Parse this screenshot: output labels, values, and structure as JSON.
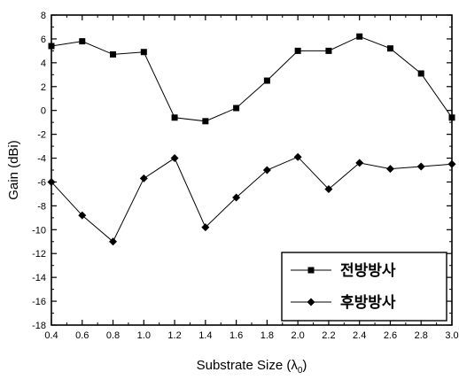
{
  "chart_data": {
    "type": "line",
    "xlabel": "Substrate Size (λ",
    "xlabel_sub": "0",
    "xlabel_close": ")",
    "ylabel": "Gain (dBi)",
    "xlim": [
      0.4,
      3.0
    ],
    "ylim": [
      -18,
      8
    ],
    "x_ticks": [
      0.4,
      0.6,
      0.8,
      1.0,
      1.2,
      1.4,
      1.6,
      1.8,
      2.0,
      2.2,
      2.4,
      2.6,
      2.8,
      3.0
    ],
    "x_tick_labels": [
      "0.4",
      "0.6",
      "0.8",
      "1.0",
      "1.2",
      "1.4",
      "1.6",
      "1.8",
      "2.0",
      "2.2",
      "2.4",
      "2.6",
      "2.8",
      "3.0"
    ],
    "y_ticks": [
      8,
      6,
      4,
      2,
      0,
      -2,
      -4,
      -6,
      -8,
      -10,
      -12,
      -14,
      -16,
      -18
    ],
    "y_tick_labels": [
      "8",
      "6",
      "4",
      "2",
      "0",
      "-2",
      "-4",
      "-6",
      "-8",
      "-10",
      "-12",
      "-14",
      "-16",
      "-18"
    ],
    "grid": false,
    "legend_position": "bottom-right",
    "series": [
      {
        "name": "전방방사",
        "marker": "square",
        "x": [
          0.4,
          0.6,
          0.8,
          1.0,
          1.2,
          1.4,
          1.6,
          1.8,
          2.0,
          2.2,
          2.4,
          2.6,
          2.8,
          3.0
        ],
        "values": [
          5.4,
          5.8,
          4.7,
          4.9,
          -0.6,
          -0.9,
          0.2,
          2.5,
          5.0,
          5.0,
          6.2,
          5.2,
          3.1,
          -0.6
        ]
      },
      {
        "name": "후방방사",
        "marker": "diamond",
        "x": [
          0.4,
          0.6,
          0.8,
          1.0,
          1.2,
          1.4,
          1.6,
          1.8,
          2.0,
          2.2,
          2.4,
          2.6,
          2.8,
          3.0
        ],
        "values": [
          -6.0,
          -8.8,
          -11.0,
          -5.7,
          -4.0,
          -9.8,
          -7.3,
          -5.0,
          -3.9,
          -6.6,
          -4.4,
          -4.9,
          -4.7,
          -4.5
        ]
      }
    ]
  }
}
